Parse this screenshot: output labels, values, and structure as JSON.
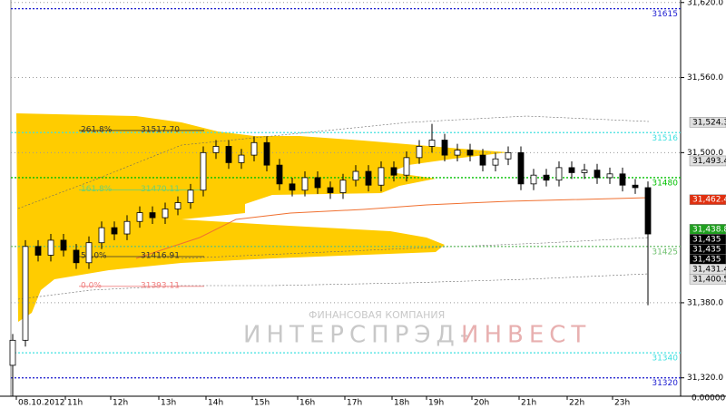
{
  "chart_data": {
    "type": "candlestick",
    "categories": [
      "08.10.2012",
      "11h",
      "12h",
      "13h",
      "14h",
      "15h",
      "16h",
      "17h",
      "18h",
      "19h",
      "20h",
      "21h",
      "22h",
      "23h"
    ],
    "ylim": [
      31305.3,
      31622
    ],
    "yticks": [
      {
        "value": 31620,
        "label": "31,620.0"
      },
      {
        "value": 31560,
        "label": "31,560.0"
      },
      {
        "value": 31500,
        "label": "31,500.0"
      },
      {
        "value": 31380,
        "label": "31,380.0"
      },
      {
        "value": 31320,
        "label": "31,320.0"
      }
    ],
    "grid": true,
    "up_color": "#ffffff",
    "down_color": "#000000",
    "open": [
      31330,
      31350,
      31425,
      31418,
      31430,
      31422,
      31412,
      31428,
      31440,
      31435,
      31445,
      31452,
      31448,
      31455,
      31460,
      31470,
      31500,
      31505,
      31492,
      31498,
      31508,
      31490,
      31475,
      31470,
      31480,
      31472,
      31468,
      31478,
      31485,
      31474,
      31488,
      31482,
      31496,
      31505,
      31510,
      31498,
      31502,
      31498,
      31490,
      31495,
      31500,
      31475,
      31482,
      31478,
      31488,
      31484,
      31486,
      31480,
      31483,
      31474,
      31472
    ],
    "close": [
      31350,
      31425,
      31418,
      31430,
      31422,
      31412,
      31428,
      31440,
      31435,
      31445,
      31452,
      31448,
      31455,
      31460,
      31470,
      31500,
      31505,
      31492,
      31498,
      31508,
      31490,
      31475,
      31470,
      31480,
      31472,
      31468,
      31478,
      31485,
      31474,
      31488,
      31482,
      31496,
      31505,
      31510,
      31498,
      31502,
      31498,
      31490,
      31495,
      31500,
      31475,
      31482,
      31478,
      31488,
      31484,
      31486,
      31480,
      31483,
      31474,
      31472,
      31435
    ],
    "high": [
      31355,
      31430,
      31430,
      31435,
      31435,
      31427,
      31433,
      31445,
      31445,
      31450,
      31457,
      31457,
      31460,
      31465,
      31475,
      31505,
      31510,
      31510,
      31503,
      31513,
      31513,
      31495,
      31480,
      31485,
      31485,
      31477,
      31483,
      31490,
      31490,
      31493,
      31493,
      31501,
      31510,
      31523,
      31515,
      31507,
      31507,
      31503,
      31500,
      31505,
      31505,
      31487,
      31487,
      31493,
      31493,
      31491,
      31491,
      31488,
      31488,
      31479,
      31477
    ],
    "low": [
      31305,
      31345,
      31413,
      31413,
      31417,
      31407,
      31407,
      31423,
      31430,
      31430,
      31440,
      31443,
      31443,
      31450,
      31455,
      31465,
      31495,
      31487,
      31487,
      31493,
      31485,
      31470,
      31465,
      31465,
      31467,
      31463,
      31463,
      31473,
      31469,
      31469,
      31477,
      31477,
      31491,
      31500,
      31493,
      31493,
      31493,
      31485,
      31485,
      31490,
      31470,
      31470,
      31473,
      31473,
      31479,
      31479,
      31475,
      31475,
      31469,
      31467,
      31378
    ],
    "levels": [
      {
        "value": 31615,
        "label": "31615",
        "color": "#1a1ad0"
      },
      {
        "value": 31516,
        "label": "31516",
        "color": "#40e0e0"
      },
      {
        "value": 31480,
        "label": "31480",
        "color": "#00c000"
      },
      {
        "value": 31425,
        "label": "31425",
        "color": "#70c070"
      },
      {
        "value": 31340,
        "label": "31340",
        "color": "#40e0e0"
      },
      {
        "value": 31320,
        "label": "31320",
        "color": "#1a1ad0"
      }
    ],
    "fib_levels": [
      {
        "name": "261.8%",
        "value": 31517.7,
        "label": "31517.70",
        "color": "#333333"
      },
      {
        "name": "161.8%",
        "value": 31470.11,
        "label": "31470.11",
        "color": "#70d070"
      },
      {
        "name": "50.0%",
        "value": 31416.91,
        "label": "31416.91",
        "color": "#333333"
      },
      {
        "name": "0.0%",
        "value": 31393.11,
        "label": "31393.11",
        "color": "#f08080"
      }
    ],
    "price_markers": {
      "values": [
        31524.3,
        31493.4,
        31462.4,
        31438.8,
        31435,
        31435,
        31435,
        31431.4,
        31400.5
      ],
      "value_labels": [
        "31,524.3",
        "31,493.4",
        "31,462.4",
        "31,438.8",
        "31,435",
        "31,435",
        "31,435",
        "31,431.4",
        "31,400.5"
      ],
      "colors": [
        "#e0e0e0",
        "#e0e0e0",
        "#e03010",
        "#20a020",
        "#000000",
        "#000000",
        "#000000",
        "#e0e0e0",
        "#e0e0e0"
      ]
    },
    "volume_axis_label": "0.00000",
    "watermark": {
      "top": "ФИНАНСОВАЯ КОМПАНИЯ",
      "left": "ИНТЕРСПРЭД-",
      "right": "ИНВЕСТ"
    }
  }
}
